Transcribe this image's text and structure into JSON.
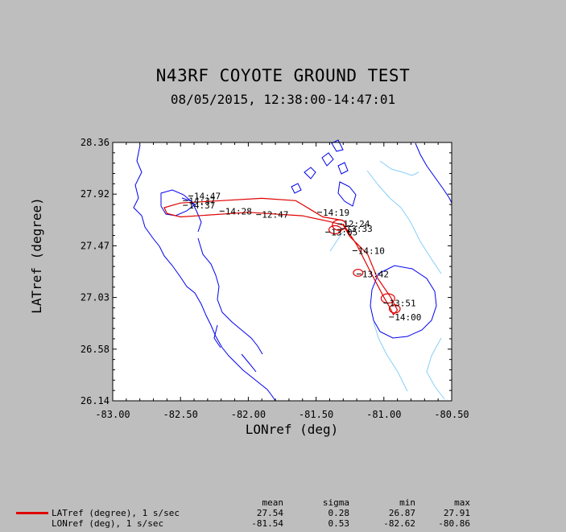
{
  "chart_data": {
    "type": "line",
    "title": "N43RF COYOTE GROUND TEST",
    "subtitle": "08/05/2015, 12:38:00-14:47:01",
    "xlabel": "LONref (deg)",
    "ylabel": "LATref (degree)",
    "xlim": [
      -83.0,
      -80.5
    ],
    "ylim": [
      26.14,
      28.36
    ],
    "xticks": [
      "-83.00",
      "-82.50",
      "-82.00",
      "-81.50",
      "-81.00",
      "-80.50"
    ],
    "yticks": [
      "26.14",
      "26.58",
      "27.03",
      "27.47",
      "27.92",
      "28.36"
    ],
    "track_color": "#e00000",
    "coast_color": "#0000ee",
    "river_color": "#87cefa",
    "track": [
      [
        -81.3,
        27.69
      ],
      [
        -81.45,
        27.72
      ],
      [
        -81.65,
        27.86
      ],
      [
        -81.9,
        27.88
      ],
      [
        -82.2,
        27.86
      ],
      [
        -82.5,
        27.84
      ],
      [
        -82.62,
        27.8
      ],
      [
        -82.6,
        27.75
      ],
      [
        -82.5,
        27.72
      ],
      [
        -82.0,
        27.76
      ],
      [
        -81.6,
        27.73
      ],
      [
        -81.4,
        27.68
      ],
      [
        -81.3,
        27.65
      ],
      [
        -81.25,
        27.55
      ],
      [
        -81.12,
        27.4
      ],
      [
        -81.05,
        27.2
      ],
      [
        -80.95,
        27.03
      ],
      [
        -80.9,
        26.92
      ],
      [
        -80.93,
        26.88
      ],
      [
        -80.96,
        26.95
      ],
      [
        -81.0,
        27.03
      ],
      [
        -81.1,
        27.25
      ],
      [
        -81.2,
        27.48
      ],
      [
        -81.3,
        27.66
      ]
    ],
    "loops": [
      {
        "lon": -81.33,
        "lat": 27.65,
        "rx": 0.05,
        "ry": 0.045
      },
      {
        "lon": -81.36,
        "lat": 27.61,
        "rx": 0.045,
        "ry": 0.035
      },
      {
        "lon": -81.19,
        "lat": 27.24,
        "rx": 0.035,
        "ry": 0.03
      },
      {
        "lon": -80.97,
        "lat": 27.02,
        "rx": 0.05,
        "ry": 0.04
      },
      {
        "lon": -80.92,
        "lat": 26.93,
        "rx": 0.04,
        "ry": 0.035
      }
    ],
    "annotations": [
      {
        "text": "14:37",
        "lon": -82.44,
        "lat": 27.86
      },
      {
        "text": "14:47",
        "lon": -82.4,
        "lat": 27.9
      },
      {
        "text": "14:37",
        "lon": -82.44,
        "lat": 27.82
      },
      {
        "text": "14:28",
        "lon": -82.17,
        "lat": 27.77
      },
      {
        "text": "12:47",
        "lon": -81.9,
        "lat": 27.74
      },
      {
        "text": "14:19",
        "lon": -81.45,
        "lat": 27.76
      },
      {
        "text": "12:24",
        "lon": -81.3,
        "lat": 27.66
      },
      {
        "text": "13:33",
        "lon": -81.28,
        "lat": 27.62
      },
      {
        "text": "13:05",
        "lon": -81.39,
        "lat": 27.59
      },
      {
        "text": "14:10",
        "lon": -81.19,
        "lat": 27.43
      },
      {
        "text": "13:42",
        "lon": -81.16,
        "lat": 27.23
      },
      {
        "text": "13:51",
        "lon": -80.96,
        "lat": 26.98
      },
      {
        "text": "14:00",
        "lon": -80.92,
        "lat": 26.86
      }
    ]
  },
  "legend": {
    "header": {
      "mean": "mean",
      "sigma": "sigma",
      "min": "min",
      "max": "max"
    },
    "rows": [
      {
        "label": "LATref (degree), 1 s/sec",
        "mean": "27.54",
        "sigma": "0.28",
        "min": "26.87",
        "max": "27.91"
      },
      {
        "label": "LONref (deg), 1 s/sec",
        "mean": "-81.54",
        "sigma": "0.53",
        "min": "-82.62",
        "max": "-80.86"
      }
    ]
  }
}
